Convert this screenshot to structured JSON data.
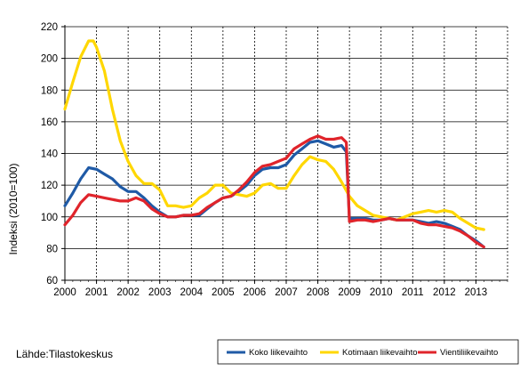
{
  "chart_data": {
    "type": "line",
    "ylabel": "Indeksi (2010=100)",
    "source": "Lähde:Tilastokeskus",
    "ylim": [
      60,
      220
    ],
    "yticks": [
      60,
      80,
      100,
      120,
      140,
      160,
      180,
      200,
      220
    ],
    "xlim": [
      2000,
      2014
    ],
    "xticks": [
      "2000",
      "2001",
      "2002",
      "2003",
      "2004",
      "2005",
      "2006",
      "2007",
      "2008",
      "2009",
      "2010",
      "2011",
      "2012",
      "2013"
    ],
    "grid": "vertical dashed at year boundaries, horizontal solid",
    "legend_position": "bottom-right",
    "series": [
      {
        "name": "Koko liikevaihto",
        "color": "#1f5aa6",
        "points": [
          [
            2000.0,
            107
          ],
          [
            2000.25,
            115
          ],
          [
            2000.5,
            124
          ],
          [
            2000.75,
            131
          ],
          [
            2001.0,
            130
          ],
          [
            2001.25,
            127
          ],
          [
            2001.5,
            124
          ],
          [
            2001.75,
            119
          ],
          [
            2002.0,
            116
          ],
          [
            2002.25,
            116
          ],
          [
            2002.5,
            112
          ],
          [
            2002.75,
            107
          ],
          [
            2003.0,
            103
          ],
          [
            2003.25,
            100
          ],
          [
            2003.5,
            100
          ],
          [
            2003.75,
            101
          ],
          [
            2004.0,
            101
          ],
          [
            2004.25,
            101
          ],
          [
            2004.5,
            105
          ],
          [
            2004.75,
            109
          ],
          [
            2005.0,
            112
          ],
          [
            2005.25,
            113
          ],
          [
            2005.5,
            116
          ],
          [
            2005.75,
            120
          ],
          [
            2006.0,
            126
          ],
          [
            2006.25,
            130
          ],
          [
            2006.5,
            131
          ],
          [
            2006.75,
            131
          ],
          [
            2007.0,
            133
          ],
          [
            2007.25,
            139
          ],
          [
            2007.5,
            143
          ],
          [
            2007.75,
            147
          ],
          [
            2008.0,
            148
          ],
          [
            2008.25,
            146
          ],
          [
            2008.5,
            144
          ],
          [
            2008.75,
            145
          ],
          [
            2008.9,
            141
          ],
          [
            2009.0,
            99
          ],
          [
            2009.25,
            99
          ],
          [
            2009.5,
            99
          ],
          [
            2009.75,
            98
          ],
          [
            2010.0,
            98
          ],
          [
            2010.25,
            99
          ],
          [
            2010.5,
            98
          ],
          [
            2010.75,
            98
          ],
          [
            2011.0,
            98
          ],
          [
            2011.25,
            97
          ],
          [
            2011.5,
            96
          ],
          [
            2011.75,
            97
          ],
          [
            2012.0,
            96
          ],
          [
            2012.25,
            94
          ],
          [
            2012.5,
            92
          ],
          [
            2012.75,
            88
          ],
          [
            2013.0,
            85
          ],
          [
            2013.25,
            81
          ]
        ]
      },
      {
        "name": "Kotimaan liikevaihto",
        "color": "#ffd700",
        "points": [
          [
            2000.0,
            168
          ],
          [
            2000.25,
            185
          ],
          [
            2000.5,
            201
          ],
          [
            2000.75,
            211
          ],
          [
            2000.9,
            211
          ],
          [
            2001.0,
            207
          ],
          [
            2001.25,
            192
          ],
          [
            2001.5,
            168
          ],
          [
            2001.75,
            148
          ],
          [
            2002.0,
            135
          ],
          [
            2002.25,
            126
          ],
          [
            2002.5,
            121
          ],
          [
            2002.75,
            121
          ],
          [
            2003.0,
            117
          ],
          [
            2003.25,
            107
          ],
          [
            2003.5,
            107
          ],
          [
            2003.75,
            106
          ],
          [
            2004.0,
            107
          ],
          [
            2004.25,
            112
          ],
          [
            2004.5,
            115
          ],
          [
            2004.75,
            120
          ],
          [
            2005.0,
            120
          ],
          [
            2005.25,
            115
          ],
          [
            2005.5,
            114
          ],
          [
            2005.75,
            113
          ],
          [
            2006.0,
            115
          ],
          [
            2006.25,
            120
          ],
          [
            2006.5,
            121
          ],
          [
            2006.75,
            118
          ],
          [
            2007.0,
            118
          ],
          [
            2007.25,
            126
          ],
          [
            2007.5,
            133
          ],
          [
            2007.75,
            138
          ],
          [
            2008.0,
            136
          ],
          [
            2008.25,
            135
          ],
          [
            2008.5,
            130
          ],
          [
            2008.75,
            122
          ],
          [
            2009.0,
            113
          ],
          [
            2009.25,
            107
          ],
          [
            2009.5,
            104
          ],
          [
            2009.75,
            101
          ],
          [
            2010.0,
            100
          ],
          [
            2010.25,
            99
          ],
          [
            2010.5,
            98
          ],
          [
            2010.75,
            100
          ],
          [
            2011.0,
            102
          ],
          [
            2011.25,
            103
          ],
          [
            2011.5,
            104
          ],
          [
            2011.75,
            103
          ],
          [
            2012.0,
            104
          ],
          [
            2012.25,
            103
          ],
          [
            2012.5,
            99
          ],
          [
            2012.75,
            96
          ],
          [
            2013.0,
            93
          ],
          [
            2013.25,
            92
          ]
        ]
      },
      {
        "name": "Vientiliikevaihto",
        "color": "#e0242b",
        "points": [
          [
            2000.0,
            95
          ],
          [
            2000.25,
            101
          ],
          [
            2000.5,
            109
          ],
          [
            2000.75,
            114
          ],
          [
            2001.0,
            113
          ],
          [
            2001.25,
            112
          ],
          [
            2001.5,
            111
          ],
          [
            2001.75,
            110
          ],
          [
            2002.0,
            110
          ],
          [
            2002.25,
            112
          ],
          [
            2002.5,
            110
          ],
          [
            2002.75,
            105
          ],
          [
            2003.0,
            102
          ],
          [
            2003.25,
            100
          ],
          [
            2003.5,
            100
          ],
          [
            2003.75,
            101
          ],
          [
            2004.0,
            101
          ],
          [
            2004.25,
            102
          ],
          [
            2004.5,
            106
          ],
          [
            2004.75,
            109
          ],
          [
            2005.0,
            112
          ],
          [
            2005.25,
            113
          ],
          [
            2005.5,
            117
          ],
          [
            2005.75,
            122
          ],
          [
            2006.0,
            128
          ],
          [
            2006.25,
            132
          ],
          [
            2006.5,
            133
          ],
          [
            2006.75,
            135
          ],
          [
            2007.0,
            137
          ],
          [
            2007.25,
            143
          ],
          [
            2007.5,
            146
          ],
          [
            2007.75,
            149
          ],
          [
            2008.0,
            151
          ],
          [
            2008.25,
            149
          ],
          [
            2008.5,
            149
          ],
          [
            2008.75,
            150
          ],
          [
            2008.9,
            147
          ],
          [
            2009.0,
            97
          ],
          [
            2009.25,
            98
          ],
          [
            2009.5,
            98
          ],
          [
            2009.75,
            97
          ],
          [
            2010.0,
            98
          ],
          [
            2010.25,
            99
          ],
          [
            2010.5,
            98
          ],
          [
            2010.75,
            98
          ],
          [
            2011.0,
            98
          ],
          [
            2011.25,
            96
          ],
          [
            2011.5,
            95
          ],
          [
            2011.75,
            95
          ],
          [
            2012.0,
            94
          ],
          [
            2012.25,
            93
          ],
          [
            2012.5,
            91
          ],
          [
            2012.75,
            88
          ],
          [
            2013.0,
            84
          ],
          [
            2013.25,
            81
          ]
        ]
      }
    ]
  }
}
